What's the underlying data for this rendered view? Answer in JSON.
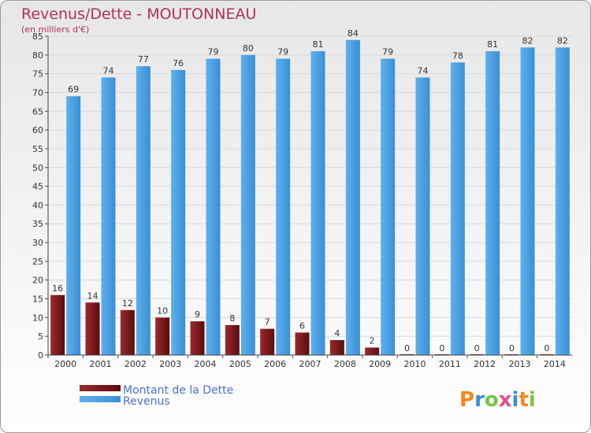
{
  "chart_data": {
    "type": "bar",
    "title": "Revenus/Dette - MOUTONNEAU",
    "subtitle": "(en milliers d'€)",
    "categories": [
      "2000",
      "2001",
      "2002",
      "2003",
      "2004",
      "2005",
      "2006",
      "2007",
      "2008",
      "2009",
      "2010",
      "2011",
      "2012",
      "2013",
      "2014"
    ],
    "series": [
      {
        "name": "Montant de la Dette",
        "values": [
          16,
          14,
          12,
          10,
          9,
          8,
          7,
          6,
          4,
          2,
          0,
          0,
          0,
          0,
          0
        ],
        "color": "#7a1416"
      },
      {
        "name": "Revenus",
        "values": [
          69,
          74,
          77,
          76,
          79,
          80,
          79,
          81,
          84,
          79,
          74,
          78,
          81,
          82,
          82
        ],
        "color": "#4a9fe0"
      }
    ],
    "ylim": [
      0,
      85
    ],
    "yticks": [
      0,
      5,
      10,
      15,
      20,
      25,
      30,
      35,
      40,
      45,
      50,
      55,
      60,
      65,
      70,
      75,
      80,
      85
    ],
    "grid": true,
    "legend_position": "bottom-left"
  },
  "logo": {
    "text": "Proxiti"
  }
}
